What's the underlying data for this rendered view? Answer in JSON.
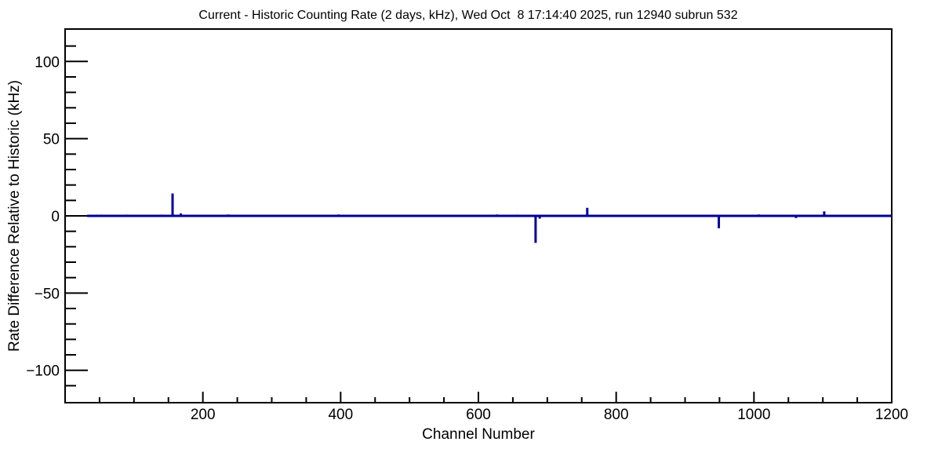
{
  "chart_data": {
    "type": "line",
    "subtype": "root-style-histogram-step",
    "title": "Current - Historic Counting Rate (2 days, kHz), Wed Oct  8 17:14:40 2025, run 12940 subrun 532",
    "xlabel": "Channel Number",
    "ylabel": "Rate Difference Relative to Historic (kHz)",
    "xlim": [
      0,
      1200
    ],
    "ylim": [
      -121,
      121
    ],
    "x_major_ticks": [
      200,
      400,
      600,
      800,
      1000,
      1200
    ],
    "x_tick_labels": [
      "200",
      "400",
      "600",
      "800",
      "1000",
      "1200"
    ],
    "x_minor_step": 50,
    "y_major_ticks": [
      -100,
      -50,
      0,
      50,
      100
    ],
    "y_tick_labels": [
      "−100",
      "−50",
      "0",
      "50",
      "100"
    ],
    "y_minor_step": 10,
    "grid": false,
    "legend": "none",
    "line_color": "#000099",
    "axis_color": "#000000",
    "background_color": "#ffffff",
    "baseline_value": 0,
    "black_baseline_segment": {
      "from_channel": 0,
      "to_channel": 32
    },
    "blue_line_start_channel": 32,
    "spikes": [
      {
        "channel": 40,
        "value": 0.6
      },
      {
        "channel": 52,
        "value": 0.8
      },
      {
        "channel": 64,
        "value": 0.5
      },
      {
        "channel": 76,
        "value": 0.6
      },
      {
        "channel": 90,
        "value": 0.8
      },
      {
        "channel": 110,
        "value": 0.6
      },
      {
        "channel": 122,
        "value": 0.5
      },
      {
        "channel": 140,
        "value": 0.8
      },
      {
        "channel": 156,
        "value": 14.5
      },
      {
        "channel": 168,
        "value": 1.6
      },
      {
        "channel": 237,
        "value": 0.9
      },
      {
        "channel": 251,
        "value": 0.5
      },
      {
        "channel": 375,
        "value": 0.7
      },
      {
        "channel": 397,
        "value": 0.9
      },
      {
        "channel": 420,
        "value": 0.5
      },
      {
        "channel": 576,
        "value": 0.6
      },
      {
        "channel": 627,
        "value": 0.9
      },
      {
        "channel": 656,
        "value": 0.8
      },
      {
        "channel": 683,
        "value": -17.5
      },
      {
        "channel": 689,
        "value": -1.8
      },
      {
        "channel": 758,
        "value": 5.2
      },
      {
        "channel": 811,
        "value": 0.6
      },
      {
        "channel": 949,
        "value": -8.0
      },
      {
        "channel": 1007,
        "value": 0.9
      },
      {
        "channel": 1061,
        "value": -1.4
      },
      {
        "channel": 1085,
        "value": 0.7
      },
      {
        "channel": 1102,
        "value": 2.9
      },
      {
        "channel": 1189,
        "value": 0.6
      }
    ]
  }
}
